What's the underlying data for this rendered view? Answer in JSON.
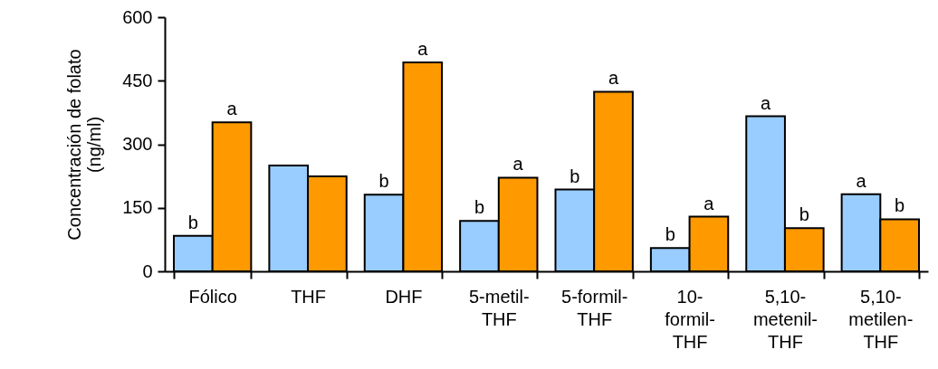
{
  "chart_data": {
    "type": "bar",
    "ylabel": "Concentración de folato\n(ng/ml)",
    "categories": [
      "Fólico",
      "THF",
      "DHF",
      "5-metil-\nTHF",
      "5-formil-\nTHF",
      "10-\nformil-\nTHF",
      "5,10-\nmetenil-\nTHF",
      "5,10-\nmetilen-\nTHF"
    ],
    "series": [
      {
        "color": "#99ccff",
        "values": [
          84,
          250,
          181,
          119,
          193,
          55,
          366,
          182
        ]
      },
      {
        "color": "#ff9900",
        "values": [
          352,
          224,
          493,
          221,
          424,
          129,
          102,
          123
        ]
      }
    ],
    "ylim": [
      0,
      600
    ],
    "yticks": [
      0,
      150,
      300,
      450,
      600
    ],
    "grid": false,
    "annotations": [
      {
        "text": "b",
        "x": "Fólico",
        "y": 84
      },
      {
        "text": "a",
        "x": "Fólico",
        "y": 352
      },
      {
        "text": "b",
        "x": "DHF",
        "y": 181
      },
      {
        "text": "a",
        "x": "DHF",
        "y": 493
      },
      {
        "text": "b",
        "x": "5-metil-\nTHF",
        "y": 119
      },
      {
        "text": "a",
        "x": "5-metil-\nTHF",
        "y": 221
      },
      {
        "text": "b",
        "x": "5-formil-\nTHF",
        "y": 193
      },
      {
        "text": "a",
        "x": "5-formil-\nTHF",
        "y": 424
      },
      {
        "text": "b",
        "x": "10-\nformil-\nTHF",
        "y": 55
      },
      {
        "text": "a",
        "x": "10-\nformil-\nTHF",
        "y": 129
      },
      {
        "text": "a",
        "x": "5,10-\nmetenil-\nTHF",
        "y": 366
      },
      {
        "text": "b",
        "x": "5,10-\nmetenil-\nTHF",
        "y": 102
      },
      {
        "text": "a",
        "x": "5,10-\nmetilen-\nTHF",
        "y": 182
      },
      {
        "text": "b",
        "x": "5,10-\nmetilen-\nTHF",
        "y": 123
      }
    ]
  }
}
